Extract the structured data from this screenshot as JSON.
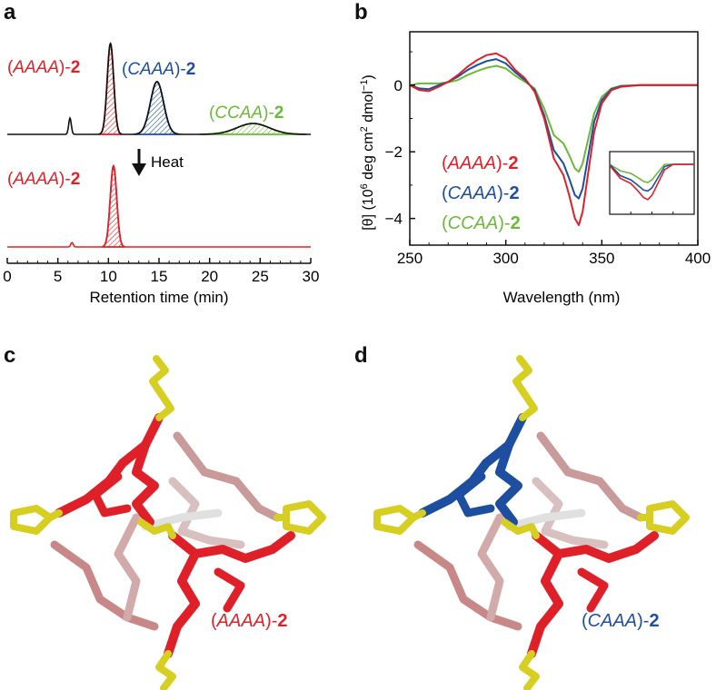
{
  "panel_labels": {
    "a": "a",
    "b": "b",
    "c": "c",
    "d": "d"
  },
  "colors": {
    "red": "#e02028",
    "blue": "#1d4ea0",
    "green": "#6cb83a",
    "black": "#111111",
    "yellow": "#d6cf22"
  },
  "chart_data": [
    {
      "type": "line",
      "title": "",
      "xlabel": "Retention time (min)",
      "ylabel": "",
      "xlim": [
        0,
        30
      ],
      "xticks": [
        "0",
        "5",
        "10",
        "15",
        "20",
        "25",
        "30"
      ],
      "annotation_heat": "Heat",
      "series": [
        {
          "name": "before heating",
          "color": "#111111",
          "baseline_peaks": [
            {
              "t": 6.2,
              "h": 0.18,
              "w": 0.13
            }
          ],
          "peaks": [
            {
              "label_open": "(",
              "label_italic": "AAAA",
              "label_close": ")-",
              "label_bold": "2",
              "t": 10.2,
              "h": 1.0,
              "w": 0.32,
              "color": "#e02028"
            },
            {
              "label_open": "(",
              "label_italic": "CAAA",
              "label_close": ")-",
              "label_bold": "2",
              "t": 14.8,
              "h": 0.58,
              "w": 0.65,
              "color": "#1d4ea0"
            },
            {
              "label_open": "(",
              "label_italic": "CCAA",
              "label_close": ")-",
              "label_bold": "2",
              "t": 24.3,
              "h": 0.12,
              "w": 1.6,
              "color": "#6cb83a"
            }
          ]
        },
        {
          "name": "after heating",
          "color": "#e02028",
          "baseline_peaks": [
            {
              "t": 6.4,
              "h": 0.05,
              "w": 0.12
            }
          ],
          "peaks": [
            {
              "label_open": "(",
              "label_italic": "AAAA",
              "label_close": ")-",
              "label_bold": "2",
              "t": 10.5,
              "h": 0.93,
              "w": 0.32,
              "color": "#e02028"
            }
          ]
        }
      ]
    },
    {
      "type": "line",
      "title": "",
      "xlabel": "Wavelength (nm)",
      "ylabel_main": "[θ] (10",
      "ylabel_sup6": "6",
      "ylabel_mid": " deg cm",
      "ylabel_sup2": "2",
      "ylabel_tail": " dmol",
      "ylabel_supm1": "−1",
      "ylabel_close": ")",
      "xlim": [
        250,
        400
      ],
      "ylim": [
        -4.8,
        1.6
      ],
      "xticks": [
        "250",
        "300",
        "350",
        "400"
      ],
      "yticks": [
        "0",
        "−2",
        "−4"
      ],
      "legend": [
        {
          "open": "(",
          "italic": "AAAA",
          "close": ")-",
          "bold": "2",
          "color": "#e02028"
        },
        {
          "open": "(",
          "italic": "CAAA",
          "close": ")-",
          "bold": "2",
          "color": "#1d4ea0"
        },
        {
          "open": "(",
          "italic": "CCAA",
          "close": ")-",
          "bold": "2",
          "color": "#6cb83a"
        }
      ],
      "series": [
        {
          "name": "(AAAA)-2",
          "color": "#e02028",
          "x": [
            250,
            255,
            260,
            265,
            270,
            275,
            280,
            285,
            290,
            295,
            300,
            305,
            310,
            315,
            320,
            325,
            330,
            333,
            336,
            338,
            340,
            343,
            346,
            350,
            355,
            360,
            370,
            380,
            390,
            400
          ],
          "y": [
            0,
            -0.15,
            -0.18,
            -0.05,
            0.1,
            0.3,
            0.55,
            0.75,
            0.9,
            0.95,
            0.8,
            0.45,
            0.2,
            -0.2,
            -1.0,
            -2.2,
            -2.7,
            -3.3,
            -4.0,
            -4.2,
            -3.8,
            -2.6,
            -1.4,
            -0.55,
            -0.15,
            -0.05,
            0,
            0,
            0,
            0
          ]
        },
        {
          "name": "(CAAA)-2",
          "color": "#1d4ea0",
          "x": [
            250,
            255,
            260,
            265,
            270,
            275,
            280,
            285,
            290,
            295,
            300,
            305,
            310,
            315,
            320,
            325,
            330,
            333,
            336,
            338,
            340,
            343,
            346,
            350,
            355,
            360,
            370,
            380,
            390,
            400
          ],
          "y": [
            0,
            -0.1,
            -0.12,
            0,
            0.1,
            0.25,
            0.45,
            0.6,
            0.72,
            0.78,
            0.65,
            0.38,
            0.15,
            -0.15,
            -0.9,
            -1.95,
            -2.35,
            -2.8,
            -3.3,
            -3.4,
            -3.1,
            -2.1,
            -1.1,
            -0.45,
            -0.12,
            -0.03,
            0,
            0,
            0,
            0
          ]
        },
        {
          "name": "(CCAA)-2",
          "color": "#6cb83a",
          "x": [
            250,
            255,
            260,
            265,
            270,
            275,
            280,
            285,
            290,
            295,
            300,
            305,
            310,
            315,
            320,
            325,
            330,
            333,
            336,
            338,
            340,
            343,
            346,
            350,
            355,
            360,
            370,
            380,
            390,
            400
          ],
          "y": [
            0,
            0.05,
            0.05,
            0.05,
            0.08,
            0.15,
            0.3,
            0.42,
            0.52,
            0.58,
            0.5,
            0.28,
            0.1,
            -0.1,
            -0.7,
            -1.5,
            -1.75,
            -2.1,
            -2.5,
            -2.6,
            -2.35,
            -1.6,
            -0.85,
            -0.35,
            -0.1,
            -0.02,
            0,
            0,
            0,
            0
          ]
        }
      ]
    }
  ],
  "structures": {
    "c_label": {
      "open": "(",
      "italic": "AAAA",
      "close": ")-",
      "bold": "2"
    },
    "d_label": {
      "open": "(",
      "italic": "CAAA",
      "close": ")-",
      "bold": "2"
    }
  }
}
